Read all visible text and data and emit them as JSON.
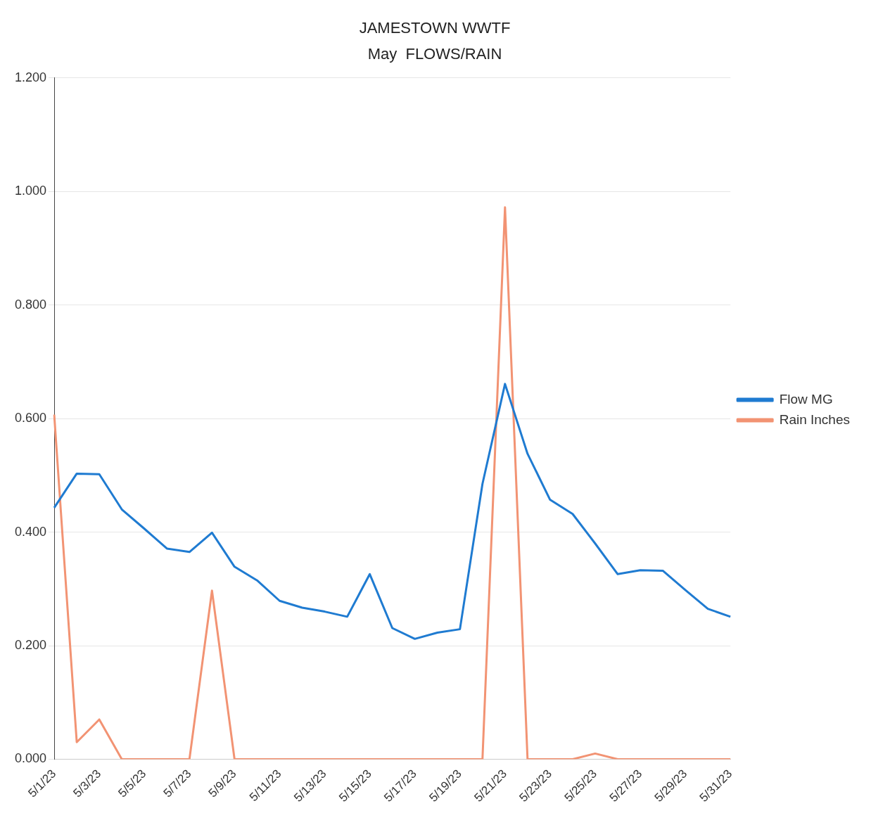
{
  "chart_data": {
    "type": "line",
    "title": "JAMESTOWN WWTF",
    "subtitle": "May  FLOWS/RAIN",
    "categories": [
      "5/1/23",
      null,
      "5/3/23",
      null,
      "5/5/23",
      null,
      "5/7/23",
      null,
      "5/9/23",
      null,
      "5/11/23",
      null,
      "5/13/23",
      null,
      "5/15/23",
      null,
      "5/17/23",
      null,
      "5/19/23",
      null,
      "5/21/23",
      null,
      "5/23/23",
      null,
      "5/25/23",
      null,
      "5/27/23",
      null,
      "5/29/23",
      null,
      "5/31/23"
    ],
    "series": [
      {
        "name": "Flow MG",
        "color": "#1f7bd1",
        "values": [
          0.443,
          0.503,
          0.502,
          0.44,
          0.406,
          0.371,
          0.365,
          0.399,
          0.339,
          0.315,
          0.279,
          0.267,
          0.26,
          0.251,
          0.326,
          0.231,
          0.212,
          0.223,
          0.229,
          0.485,
          0.661,
          0.538,
          0.457,
          0.432,
          0.38,
          0.326,
          0.333,
          0.332,
          0.298,
          0.265,
          0.251
        ]
      },
      {
        "name": "Rain Inches",
        "color": "#f29373",
        "values": [
          0.607,
          0.03,
          0.07,
          0,
          0,
          0,
          0,
          0.297,
          0,
          0,
          0,
          0,
          0,
          0,
          0,
          0,
          0,
          0,
          0,
          0,
          0.972,
          0,
          0,
          0,
          0.01,
          0,
          0,
          0,
          0,
          0,
          0
        ]
      }
    ],
    "ylim": [
      0,
      1.2
    ],
    "yticks": [
      {
        "value": 0,
        "label": "0.000"
      },
      {
        "value": 0.2,
        "label": "0.200"
      },
      {
        "value": 0.4,
        "label": "0.400"
      },
      {
        "value": 0.6,
        "label": "0.600"
      },
      {
        "value": 0.8,
        "label": "0.800"
      },
      {
        "value": 1,
        "label": "1.000"
      },
      {
        "value": 1.2,
        "label": "1.200"
      }
    ],
    "grid": "y",
    "legend": "right",
    "marker": "none"
  }
}
